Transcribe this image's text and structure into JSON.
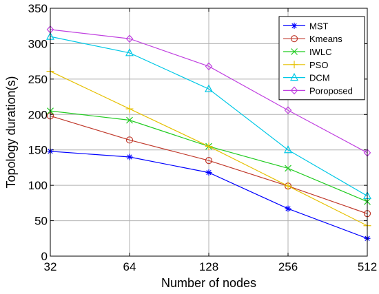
{
  "chart_data": {
    "type": "line",
    "xlabel": "Number of nodes",
    "ylabel": "Topology duration(s)",
    "x": [
      "32",
      "64",
      "128",
      "256",
      "512"
    ],
    "ylim": [
      0,
      350
    ],
    "yticks": [
      0,
      50,
      100,
      150,
      200,
      250,
      300,
      350
    ],
    "grid": true,
    "legend_position": "top-right",
    "series": [
      {
        "name": "MST",
        "color": "#0000ff",
        "marker": "asterisk",
        "values": [
          148,
          140,
          118,
          67,
          25
        ]
      },
      {
        "name": "Kmeans",
        "color": "#c0392b",
        "marker": "circle",
        "values": [
          198,
          164,
          135,
          99,
          60
        ]
      },
      {
        "name": "IWLC",
        "color": "#22cc22",
        "marker": "x",
        "values": [
          205,
          192,
          155,
          124,
          77
        ]
      },
      {
        "name": "PSO",
        "color": "#e6c000",
        "marker": "plus",
        "values": [
          261,
          208,
          155,
          99,
          43
        ]
      },
      {
        "name": "DCM",
        "color": "#00c8e6",
        "marker": "triangle",
        "values": [
          310,
          287,
          236,
          150,
          85
        ]
      },
      {
        "name": "Poroposed",
        "color": "#c040e0",
        "marker": "diamond",
        "values": [
          320,
          307,
          268,
          206,
          146
        ]
      }
    ]
  }
}
